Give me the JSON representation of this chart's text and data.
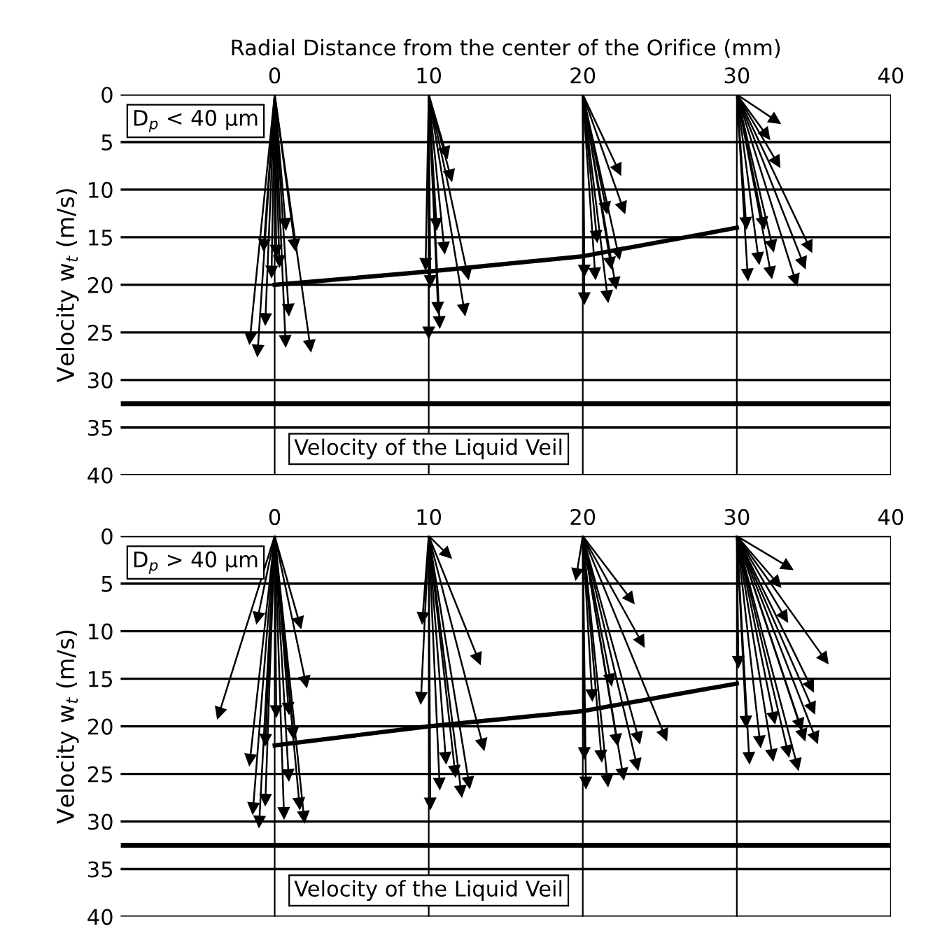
{
  "chart_data": [
    {
      "type": "line",
      "xlabel": "Radial Distance from the center of the Orifice (mm)",
      "ylabel": "Velocity w$_{t}$ (m/s)",
      "color": "#000000",
      "marker": "triangle",
      "xlim": [
        -10,
        40
      ],
      "xticks": [
        0,
        10,
        20,
        30,
        40
      ],
      "ylim": [
        40,
        0
      ],
      "yticks": [
        0,
        5,
        10,
        15,
        20,
        25,
        30,
        35,
        40
      ],
      "grid": true,
      "ref_lines": [
        {
          "axis": "y",
          "value": 32.5,
          "label": "Velocity of the Liquid Veil"
        }
      ],
      "annotations": [
        "D$_{p}$ < 40 μm"
      ],
      "series": [
        {
          "x": [
            0,
            10,
            20,
            30
          ],
          "values": [
            20,
            18.6,
            17,
            14
          ],
          "marker": "none"
        },
        {
          "x": [
            0,
            -1.6
          ],
          "values": [
            0,
            25.6
          ]
        },
        {
          "x": [
            0,
            -1.1
          ],
          "values": [
            0,
            26.9
          ]
        },
        {
          "x": [
            0,
            -0.6
          ],
          "values": [
            0,
            23.6
          ]
        },
        {
          "x": [
            0,
            -0.7
          ],
          "values": [
            0,
            15.8
          ]
        },
        {
          "x": [
            0,
            -0.2
          ],
          "values": [
            0,
            18.6
          ]
        },
        {
          "x": [
            0,
            0.1
          ],
          "values": [
            0,
            16.4
          ]
        },
        {
          "x": [
            0,
            0.3
          ],
          "values": [
            0,
            17.5
          ]
        },
        {
          "x": [
            0,
            0.7
          ],
          "values": [
            0,
            25.9
          ]
        },
        {
          "x": [
            0,
            0.9
          ],
          "values": [
            0,
            22.6
          ]
        },
        {
          "x": [
            0,
            0.7
          ],
          "values": [
            0,
            13.6
          ]
        },
        {
          "x": [
            0,
            1.3
          ],
          "values": [
            0,
            15.8
          ]
        },
        {
          "x": [
            0,
            2.3
          ],
          "values": [
            0,
            26.4
          ]
        },
        {
          "x": [
            10,
            9.8
          ],
          "values": [
            0,
            17.8
          ]
        },
        {
          "x": [
            10,
            10.1
          ],
          "values": [
            0,
            19.6
          ]
        },
        {
          "x": [
            10,
            10
          ],
          "values": [
            0,
            25
          ]
        },
        {
          "x": [
            10,
            10.6
          ],
          "values": [
            0,
            22.4
          ]
        },
        {
          "x": [
            10,
            10.7
          ],
          "values": [
            0,
            23.9
          ]
        },
        {
          "x": [
            10,
            10.5
          ],
          "values": [
            0,
            13.6
          ]
        },
        {
          "x": [
            10,
            11
          ],
          "values": [
            0,
            16.1
          ]
        },
        {
          "x": [
            10,
            11.1
          ],
          "values": [
            0,
            6.1
          ]
        },
        {
          "x": [
            10,
            11.4
          ],
          "values": [
            0,
            8.5
          ]
        },
        {
          "x": [
            10,
            12.3
          ],
          "values": [
            0,
            22.6
          ]
        },
        {
          "x": [
            10,
            12.5
          ],
          "values": [
            0,
            18.8
          ]
        },
        {
          "x": [
            20,
            22.3
          ],
          "values": [
            0,
            7.9
          ]
        },
        {
          "x": [
            20,
            22.6
          ],
          "values": [
            0,
            11.9
          ]
        },
        {
          "x": [
            20,
            20.1
          ],
          "values": [
            0,
            18.5
          ]
        },
        {
          "x": [
            20,
            20.1
          ],
          "values": [
            0,
            21.4
          ]
        },
        {
          "x": [
            20,
            20.8
          ],
          "values": [
            0,
            18.8
          ]
        },
        {
          "x": [
            20,
            21.6
          ],
          "values": [
            0,
            21.2
          ]
        },
        {
          "x": [
            20,
            22.1
          ],
          "values": [
            0,
            19.8
          ]
        },
        {
          "x": [
            20,
            22.3
          ],
          "values": [
            0,
            16.7
          ]
        },
        {
          "x": [
            20,
            21.5
          ],
          "values": [
            0,
            11.9
          ]
        },
        {
          "x": [
            20,
            20.9
          ],
          "values": [
            0,
            14.9
          ]
        },
        {
          "x": [
            20,
            21.8
          ],
          "values": [
            0,
            17.7
          ]
        },
        {
          "x": [
            30,
            32.5
          ],
          "values": [
            0,
            2.7
          ]
        },
        {
          "x": [
            30,
            31.9
          ],
          "values": [
            0,
            4.2
          ]
        },
        {
          "x": [
            30,
            32.6
          ],
          "values": [
            0,
            7.1
          ]
        },
        {
          "x": [
            30,
            30.6
          ],
          "values": [
            0,
            13.5
          ]
        },
        {
          "x": [
            30,
            30.7
          ],
          "values": [
            0,
            18.9
          ]
        },
        {
          "x": [
            30,
            31.4
          ],
          "values": [
            0,
            17.2
          ]
        },
        {
          "x": [
            30,
            32.2
          ],
          "values": [
            0,
            18.7
          ]
        },
        {
          "x": [
            30,
            32.3
          ],
          "values": [
            0,
            15.9
          ]
        },
        {
          "x": [
            30,
            31.7
          ],
          "values": [
            0,
            13.5
          ]
        },
        {
          "x": [
            30,
            33.8
          ],
          "values": [
            0,
            19.5
          ]
        },
        {
          "x": [
            30,
            34.3
          ],
          "values": [
            0,
            17.7
          ]
        },
        {
          "x": [
            30,
            34.7
          ],
          "values": [
            0,
            16
          ]
        }
      ]
    },
    {
      "type": "line",
      "ylabel": "Velocity w$_{t}$ (m/s)",
      "color": "#000000",
      "marker": "triangle",
      "xlim": [
        -10,
        40
      ],
      "xticks": [
        0,
        10,
        20,
        30,
        40
      ],
      "ylim": [
        40,
        0
      ],
      "yticks": [
        0,
        5,
        10,
        15,
        20,
        25,
        30,
        35,
        40
      ],
      "grid": true,
      "ref_lines": [
        {
          "axis": "y",
          "value": 32.5,
          "label": "Velocity of the Liquid Veil"
        }
      ],
      "annotations": [
        "D$_{p}$ > 40 μm"
      ],
      "series": [
        {
          "x": [
            0,
            10,
            20,
            30
          ],
          "values": [
            22,
            20,
            18.4,
            15.5
          ],
          "marker": "none"
        },
        {
          "x": [
            0,
            -3.6
          ],
          "values": [
            0,
            18.6
          ]
        },
        {
          "x": [
            0,
            -1.1
          ],
          "values": [
            0,
            8.6
          ]
        },
        {
          "x": [
            0,
            1.6
          ],
          "values": [
            0,
            9.1
          ]
        },
        {
          "x": [
            0,
            2
          ],
          "values": [
            0,
            15.3
          ]
        },
        {
          "x": [
            0,
            -1.6
          ],
          "values": [
            0,
            23.5
          ]
        },
        {
          "x": [
            0,
            -1.4
          ],
          "values": [
            0,
            28.6
          ]
        },
        {
          "x": [
            0,
            -1
          ],
          "values": [
            0,
            30
          ]
        },
        {
          "x": [
            0,
            -0.6
          ],
          "values": [
            0,
            27.7
          ]
        },
        {
          "x": [
            0,
            -0.6
          ],
          "values": [
            0,
            21.4
          ]
        },
        {
          "x": [
            0,
            0.6
          ],
          "values": [
            0,
            29.1
          ]
        },
        {
          "x": [
            0,
            0.9
          ],
          "values": [
            0,
            25.1
          ]
        },
        {
          "x": [
            0,
            1.2
          ],
          "values": [
            0,
            20.7
          ]
        },
        {
          "x": [
            0,
            1.6
          ],
          "values": [
            0,
            28.1
          ]
        },
        {
          "x": [
            0,
            1.9
          ],
          "values": [
            0,
            29.5
          ]
        },
        {
          "x": [
            0,
            0.1
          ],
          "values": [
            0,
            18.4
          ]
        },
        {
          "x": [
            0,
            0.9
          ],
          "values": [
            0,
            18.1
          ]
        },
        {
          "x": [
            10,
            9.6
          ],
          "values": [
            0,
            8.6
          ]
        },
        {
          "x": [
            10,
            9.5
          ],
          "values": [
            0,
            17
          ]
        },
        {
          "x": [
            10,
            10.1
          ],
          "values": [
            0,
            28.1
          ]
        },
        {
          "x": [
            10,
            10.7
          ],
          "values": [
            0,
            26
          ]
        },
        {
          "x": [
            10,
            11.2
          ],
          "values": [
            0,
            1.9
          ]
        },
        {
          "x": [
            10,
            11.1
          ],
          "values": [
            0,
            23.3
          ]
        },
        {
          "x": [
            10,
            11.7
          ],
          "values": [
            0,
            24.7
          ]
        },
        {
          "x": [
            10,
            13.2
          ],
          "values": [
            0,
            12.9
          ]
        },
        {
          "x": [
            10,
            13.5
          ],
          "values": [
            0,
            21.9
          ]
        },
        {
          "x": [
            10,
            12.6
          ],
          "values": [
            0,
            25.9
          ]
        },
        {
          "x": [
            10,
            12.1
          ],
          "values": [
            0,
            26.8
          ]
        },
        {
          "x": [
            20,
            23.1
          ],
          "values": [
            0,
            6.6
          ]
        },
        {
          "x": [
            20,
            23.8
          ],
          "values": [
            0,
            11.1
          ]
        },
        {
          "x": [
            20,
            25.3
          ],
          "values": [
            0,
            20.9
          ]
        },
        {
          "x": [
            20,
            23.5
          ],
          "values": [
            0,
            24
          ]
        },
        {
          "x": [
            20,
            22.6
          ],
          "values": [
            0,
            25
          ]
        },
        {
          "x": [
            20,
            21.6
          ],
          "values": [
            0,
            25.7
          ]
        },
        {
          "x": [
            20,
            20.2
          ],
          "values": [
            0,
            25.9
          ]
        },
        {
          "x": [
            20,
            20.1
          ],
          "values": [
            0,
            22.8
          ]
        },
        {
          "x": [
            20,
            21.2
          ],
          "values": [
            0,
            23.1
          ]
        },
        {
          "x": [
            20,
            22.2
          ],
          "values": [
            0,
            21.4
          ]
        },
        {
          "x": [
            20,
            23.6
          ],
          "values": [
            0,
            21.2
          ]
        },
        {
          "x": [
            20,
            19.6
          ],
          "values": [
            0,
            4
          ]
        },
        {
          "x": [
            20,
            20.6
          ],
          "values": [
            0,
            16.7
          ]
        },
        {
          "x": [
            20,
            21.8
          ],
          "values": [
            0,
            15.1
          ]
        },
        {
          "x": [
            30,
            33.3
          ],
          "values": [
            0,
            3.2
          ]
        },
        {
          "x": [
            30,
            32.6
          ],
          "values": [
            0,
            4.9
          ]
        },
        {
          "x": [
            30,
            33.1
          ],
          "values": [
            0,
            8.5
          ]
        },
        {
          "x": [
            30,
            35.7
          ],
          "values": [
            0,
            12.9
          ]
        },
        {
          "x": [
            30,
            34.8
          ],
          "values": [
            0,
            15.8
          ]
        },
        {
          "x": [
            30,
            34.9
          ],
          "values": [
            0,
            18.1
          ]
        },
        {
          "x": [
            30,
            35.1
          ],
          "values": [
            0,
            21.2
          ]
        },
        {
          "x": [
            30,
            34.3
          ],
          "values": [
            0,
            20.9
          ]
        },
        {
          "x": [
            30,
            33.9
          ],
          "values": [
            0,
            24
          ]
        },
        {
          "x": [
            30,
            33.3
          ],
          "values": [
            0,
            22.6
          ]
        },
        {
          "x": [
            30,
            32.3
          ],
          "values": [
            0,
            23
          ]
        },
        {
          "x": [
            30,
            31.5
          ],
          "values": [
            0,
            21.6
          ]
        },
        {
          "x": [
            30,
            30.8
          ],
          "values": [
            0,
            23.3
          ]
        },
        {
          "x": [
            30,
            30.6
          ],
          "values": [
            0,
            19.5
          ]
        },
        {
          "x": [
            30,
            32.4
          ],
          "values": [
            0,
            19.1
          ]
        },
        {
          "x": [
            30,
            30.1
          ],
          "values": [
            0,
            13.2
          ]
        },
        {
          "x": [
            30,
            34.1
          ],
          "values": [
            0,
            19.8
          ]
        }
      ]
    }
  ]
}
